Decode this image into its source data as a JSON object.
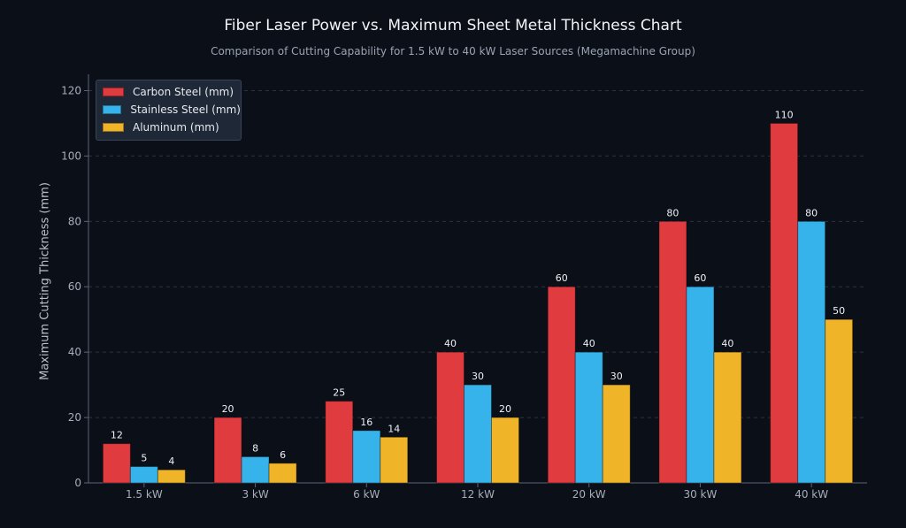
{
  "chart_data": {
    "type": "bar",
    "title": "Fiber Laser Power vs. Maximum Sheet Metal Thickness Chart",
    "subtitle": "Comparison of Cutting Capability for 1.5 kW to 40 kW Laser Sources (Megamachine Group)",
    "xlabel": "",
    "ylabel": "Maximum Cutting Thickness (mm)",
    "ylim": [
      0,
      125
    ],
    "yticks": [
      0,
      20,
      40,
      60,
      80,
      100,
      120
    ],
    "grid": true,
    "legend_position": "top-left",
    "categories": [
      "1.5 kW",
      "3 kW",
      "6 kW",
      "12 kW",
      "20 kW",
      "30 kW",
      "40 kW"
    ],
    "series": [
      {
        "name": "Carbon Steel (mm)",
        "color": "#e03b3f",
        "values": [
          12,
          20,
          25,
          40,
          60,
          80,
          110
        ]
      },
      {
        "name": "Stainless Steel (mm)",
        "color": "#35b3ea",
        "values": [
          5,
          8,
          16,
          30,
          40,
          60,
          80
        ]
      },
      {
        "name": "Aluminum (mm)",
        "color": "#f0b428",
        "values": [
          4,
          6,
          14,
          20,
          30,
          40,
          50
        ]
      }
    ]
  }
}
